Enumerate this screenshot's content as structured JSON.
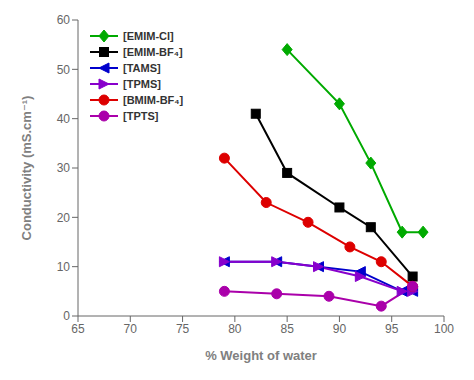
{
  "chart_data": {
    "type": "line",
    "x_label": "% Weight of water",
    "y_label": "Conductivity (mS.cm⁻¹)",
    "xlim": [
      65,
      100
    ],
    "ylim": [
      0,
      60
    ],
    "xticks": [
      65,
      70,
      75,
      80,
      85,
      90,
      95,
      100
    ],
    "yticks": [
      0,
      10,
      20,
      30,
      40,
      50,
      60
    ],
    "grid": false,
    "legend": "upper left",
    "series": [
      {
        "name": "[EMIM-Cl]",
        "color": "#00aa00",
        "marker": "diamond",
        "x": [
          85,
          90,
          93,
          96,
          98
        ],
        "values": [
          54,
          43,
          31,
          17,
          17
        ]
      },
      {
        "name": "[EMIM-BF₄]",
        "color": "#000000",
        "marker": "square",
        "x": [
          82,
          85,
          90,
          93,
          97
        ],
        "values": [
          41,
          29,
          22,
          18,
          8
        ]
      },
      {
        "name": "[TAMS]",
        "color": "#0000cc",
        "marker": "triangle-left",
        "x": [
          79,
          84,
          88,
          92,
          96,
          97
        ],
        "values": [
          11,
          11,
          10,
          9,
          5,
          5
        ]
      },
      {
        "name": "[TPMS]",
        "color": "#8800cc",
        "marker": "triangle-right",
        "x": [
          79,
          84,
          88,
          92,
          96,
          97
        ],
        "values": [
          11,
          11,
          10,
          8,
          5,
          5
        ]
      },
      {
        "name": "[BMIM-BF₄]",
        "color": "#dd0000",
        "marker": "circle",
        "x": [
          79,
          83,
          87,
          91,
          94,
          97
        ],
        "values": [
          32,
          23,
          19,
          14,
          11,
          6
        ]
      },
      {
        "name": "[TPTS]",
        "color": "#aa00aa",
        "marker": "circle",
        "x": [
          79,
          84,
          89,
          94,
          97
        ],
        "values": [
          5,
          4.5,
          4,
          2,
          6
        ]
      }
    ]
  }
}
